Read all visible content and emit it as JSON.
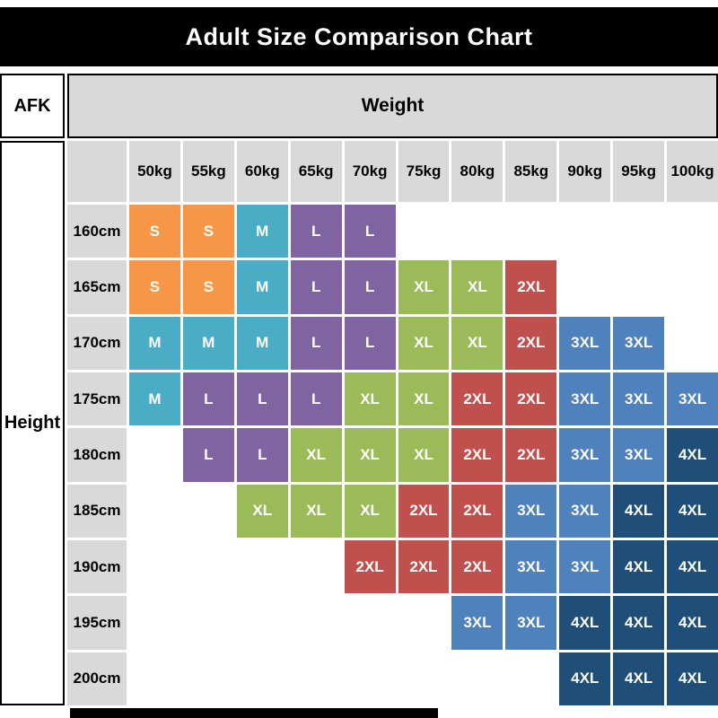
{
  "title": "Adult Size Comparison Chart",
  "labels": {
    "corner": "AFK",
    "weight": "Weight",
    "height": "Height"
  },
  "size_colors": {
    "S": "#F79646",
    "M": "#4BACC6",
    "L": "#8064A2",
    "XL": "#9BBB59",
    "2XL": "#C0504D",
    "3XL": "#4F81BD",
    "4XL": "#1F4E79"
  },
  "header_bg": "#D9D9D9",
  "title_bg": "#000000",
  "chart_data": {
    "type": "table",
    "title": "Adult Size Comparison Chart",
    "col_header_label": "Weight",
    "row_header_label": "Height",
    "columns": [
      "50kg",
      "55kg",
      "60kg",
      "65kg",
      "70kg",
      "75kg",
      "80kg",
      "85kg",
      "90kg",
      "95kg",
      "100kg"
    ],
    "rows": [
      "160cm",
      "165cm",
      "170cm",
      "175cm",
      "180cm",
      "185cm",
      "190cm",
      "195cm",
      "200cm"
    ],
    "values": [
      [
        "S",
        "S",
        "M",
        "L",
        "L",
        "",
        "",
        "",
        "",
        "",
        ""
      ],
      [
        "S",
        "S",
        "M",
        "L",
        "L",
        "XL",
        "XL",
        "2XL",
        "",
        "",
        ""
      ],
      [
        "M",
        "M",
        "M",
        "L",
        "L",
        "XL",
        "XL",
        "2XL",
        "3XL",
        "3XL",
        ""
      ],
      [
        "M",
        "L",
        "L",
        "L",
        "XL",
        "XL",
        "2XL",
        "2XL",
        "3XL",
        "3XL",
        "3XL"
      ],
      [
        "",
        "L",
        "L",
        "XL",
        "XL",
        "XL",
        "2XL",
        "2XL",
        "3XL",
        "3XL",
        "4XL"
      ],
      [
        "",
        "",
        "XL",
        "XL",
        "XL",
        "2XL",
        "2XL",
        "3XL",
        "3XL",
        "4XL",
        "4XL"
      ],
      [
        "",
        "",
        "",
        "",
        "2XL",
        "2XL",
        "2XL",
        "3XL",
        "3XL",
        "4XL",
        "4XL"
      ],
      [
        "",
        "",
        "",
        "",
        "",
        "",
        "3XL",
        "3XL",
        "4XL",
        "4XL",
        "4XL"
      ],
      [
        "",
        "",
        "",
        "",
        "",
        "",
        "",
        "",
        "4XL",
        "4XL",
        "4XL"
      ]
    ]
  }
}
